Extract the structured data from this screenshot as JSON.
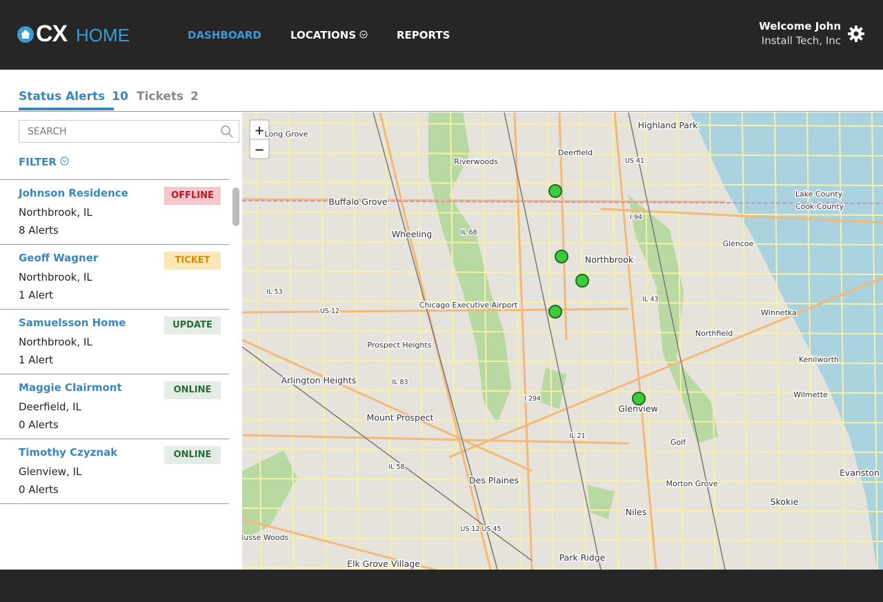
{
  "header": {
    "logo": {
      "cx": "CX",
      "home": "HOME"
    },
    "nav": [
      "DASHBOARD",
      "LOCATIONS",
      "REPORTS"
    ],
    "user": {
      "welcome": "Welcome John",
      "company": "Install Tech, Inc"
    }
  },
  "tabs": [
    {
      "label": "Status Alerts",
      "count": "10"
    },
    {
      "label": "Tickets",
      "count": "2"
    }
  ],
  "sidebar": {
    "search_placeholder": "SEARCH",
    "filter": "FILTER",
    "items": [
      {
        "name": "Johnson Residence",
        "location": "Northbrook, IL",
        "alerts": "8 Alerts",
        "status": "OFFLINE"
      },
      {
        "name": "Geoff Wagner",
        "location": "Northbrook, IL",
        "alerts": "1 Alert",
        "status": "TICKET"
      },
      {
        "name": "Samuelsson Home",
        "location": "Northbrook, IL",
        "alerts": "1 Alert",
        "status": "UPDATE"
      },
      {
        "name": "Maggie Clairmont",
        "location": "Deerfield, IL",
        "alerts": "0 Alerts",
        "status": "ONLINE"
      },
      {
        "name": "Timothy Czyznak",
        "location": "Glenview, IL",
        "alerts": "0 Alerts",
        "status": "ONLINE"
      }
    ]
  },
  "map": {
    "zoom_in": "+",
    "zoom_out": "−",
    "labels": [
      "Highland Park",
      "Long Grove",
      "Riverwoods",
      "Deerfield",
      "US 41",
      "Buffalo Grove",
      "Wheeling",
      "IL 68",
      "I 94",
      "Northbrook",
      "Glencoe",
      "Lake County",
      "Cook County",
      "IL 53",
      "US 12",
      "Chicago Executive Airport",
      "IL 43",
      "Winnetka",
      "Northfield",
      "Prospect Heights",
      "Kenilworth",
      "Arlington Heights",
      "IL 83",
      "I 294",
      "Glenview",
      "Wilmette",
      "Mount Prospect",
      "IL 21",
      "Golf",
      "IL 58",
      "Des Plaines",
      "Evanston",
      "Morton Grove",
      "Skokie",
      "Niles",
      "US 12 US 45",
      "Busse Woods",
      "Park Ridge",
      "Elk Grove Village"
    ]
  }
}
